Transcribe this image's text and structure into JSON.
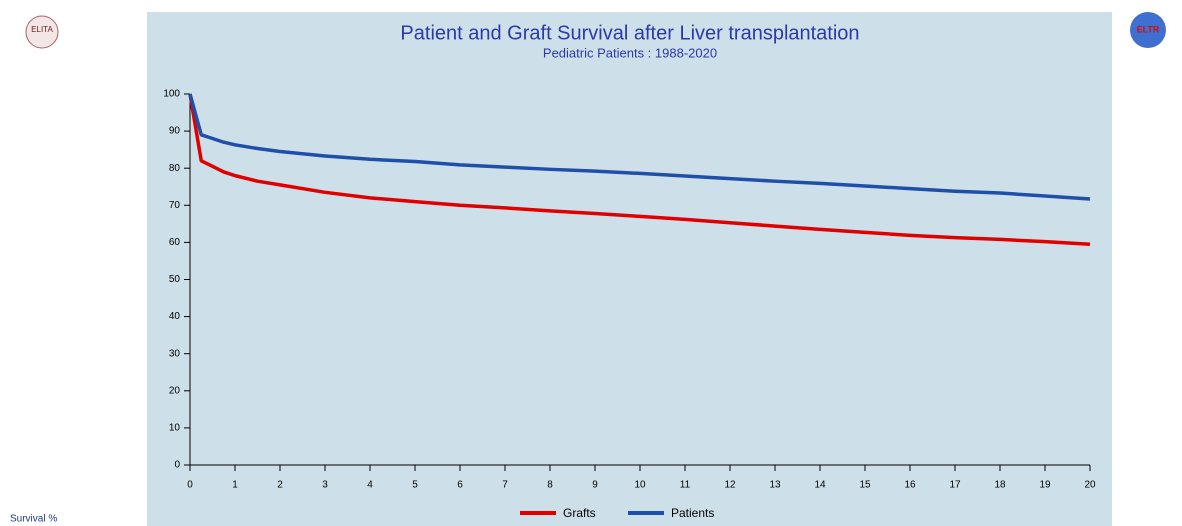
{
  "logos": {
    "left": "ELITA",
    "right": "ELTR"
  },
  "chart_data": {
    "type": "line",
    "title": "Patient and Graft Survival after Liver transplantation",
    "subtitle": "Pediatric Patients : 1988-2020",
    "y_label": "Survival %",
    "x": [
      0,
      0.25,
      0.5,
      0.75,
      1,
      1.5,
      2,
      3,
      4,
      5,
      6,
      7,
      8,
      9,
      10,
      11,
      12,
      13,
      14,
      15,
      16,
      17,
      18,
      19,
      20
    ],
    "series": [
      {
        "name": "Grafts",
        "color": "#e00000",
        "values": [
          100,
          82,
          80.5,
          79,
          78,
          76.5,
          75.5,
          73.5,
          72,
          71,
          70,
          69.3,
          68.5,
          67.8,
          67,
          66.2,
          65.3,
          64.4,
          63.5,
          62.7,
          61.9,
          61.3,
          60.8,
          60.2,
          59.5
        ]
      },
      {
        "name": "Patients",
        "color": "#1f4fa8",
        "values": [
          100,
          89,
          88,
          87,
          86.3,
          85.3,
          84.5,
          83.3,
          82.4,
          81.8,
          80.9,
          80.3,
          79.7,
          79.2,
          78.6,
          77.9,
          77.2,
          76.5,
          75.9,
          75.2,
          74.5,
          73.8,
          73.3,
          72.5,
          71.7
        ]
      }
    ],
    "xlim": [
      0,
      20
    ],
    "xticks": [
      0,
      1,
      2,
      3,
      4,
      5,
      6,
      7,
      8,
      9,
      10,
      11,
      12,
      13,
      14,
      15,
      16,
      17,
      18,
      19,
      20
    ],
    "ylim": [
      0,
      100
    ],
    "yticks": [
      0,
      10,
      20,
      30,
      40,
      50,
      60,
      70,
      80,
      90,
      100
    ],
    "background": "#cde0ea",
    "legend": "bottom"
  }
}
